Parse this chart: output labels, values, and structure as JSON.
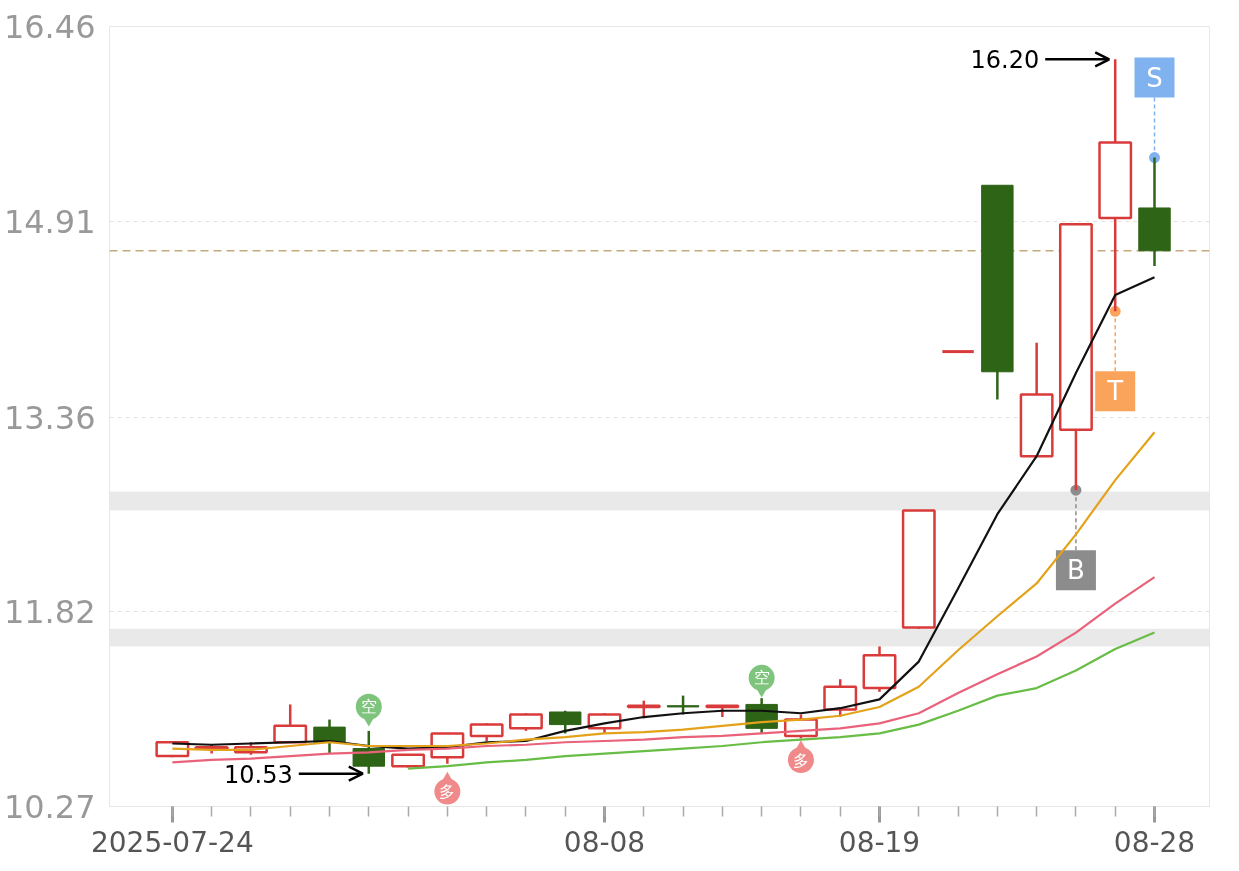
{
  "chart_data": {
    "type": "candlestick",
    "categories": [
      "2025-07-24",
      null,
      null,
      null,
      null,
      null,
      null,
      null,
      null,
      null,
      null,
      "08-08",
      null,
      null,
      null,
      null,
      null,
      null,
      "08-19",
      null,
      null,
      null,
      null,
      null,
      null,
      "08-28"
    ],
    "ohlc": [
      [
        10.67,
        10.79,
        10.66,
        10.78
      ],
      [
        10.73,
        10.76,
        10.69,
        10.74
      ],
      [
        10.7,
        10.78,
        10.68,
        10.74
      ],
      [
        10.78,
        11.08,
        10.78,
        10.91
      ],
      [
        10.9,
        10.96,
        10.69,
        10.78
      ],
      [
        10.73,
        10.87,
        10.53,
        10.59
      ],
      [
        10.59,
        10.68,
        10.58,
        10.68
      ],
      [
        10.66,
        10.85,
        10.61,
        10.85
      ],
      [
        10.83,
        10.93,
        10.79,
        10.92
      ],
      [
        10.89,
        11.01,
        10.87,
        11.0
      ],
      [
        11.02,
        11.03,
        10.85,
        10.92
      ],
      [
        10.89,
        11.01,
        10.85,
        11.0
      ],
      [
        11.06,
        11.11,
        10.97,
        11.07
      ],
      [
        11.07,
        11.15,
        11.0,
        11.06
      ],
      [
        11.06,
        11.07,
        10.98,
        11.07
      ],
      [
        11.08,
        11.13,
        10.85,
        10.89
      ],
      [
        10.83,
        11.0,
        10.81,
        10.96
      ],
      [
        11.04,
        11.28,
        10.98,
        11.22
      ],
      [
        11.21,
        11.54,
        11.18,
        11.47
      ],
      [
        11.69,
        12.62,
        11.68,
        12.62
      ],
      [
        13.88,
        13.88,
        13.88,
        13.88
      ],
      [
        15.2,
        15.2,
        13.5,
        13.72
      ],
      [
        13.05,
        13.95,
        13.05,
        13.54
      ],
      [
        13.26,
        14.89,
        12.78,
        14.89
      ],
      [
        14.94,
        16.2,
        14.2,
        15.54
      ],
      [
        15.02,
        15.42,
        14.56,
        14.68
      ]
    ],
    "colors": [
      "#d93a3a",
      "#d93a3a",
      "#d93a3a",
      "#d93a3a",
      "#2e6416",
      "#2e6416",
      "#d93a3a",
      "#d93a3a",
      "#d93a3a",
      "#d93a3a",
      "#2e6416",
      "#d93a3a",
      "#d93a3a",
      "#2e6416",
      "#d93a3a",
      "#2e6416",
      "#d93a3a",
      "#d93a3a",
      "#d93a3a",
      "#d93a3a",
      "#d93a3a",
      "#2e6416",
      "#d93a3a",
      "#d93a3a",
      "#d93a3a",
      "#2e6416"
    ],
    "series": [
      {
        "type": "line",
        "color": "#111111",
        "values": [
          10.77,
          10.76,
          10.77,
          10.78,
          10.79,
          10.75,
          10.73,
          10.74,
          10.78,
          10.79,
          10.87,
          10.93,
          10.98,
          11.01,
          11.03,
          11.03,
          11.01,
          11.05,
          11.12,
          11.42,
          12.0,
          12.59,
          13.05,
          13.71,
          14.33,
          14.47
        ]
      },
      {
        "type": "line",
        "color": "#e3a21a",
        "values": [
          10.73,
          10.72,
          10.72,
          10.75,
          10.78,
          10.75,
          10.75,
          10.75,
          10.77,
          10.8,
          10.82,
          10.85,
          10.86,
          10.88,
          10.91,
          10.94,
          10.96,
          10.99,
          11.06,
          11.22,
          11.51,
          11.78,
          12.04,
          12.43,
          12.86,
          13.24
        ]
      },
      {
        "type": "line",
        "color": "#e9627a",
        "values": [
          10.62,
          10.64,
          10.65,
          10.67,
          10.69,
          10.7,
          10.72,
          10.73,
          10.75,
          10.76,
          10.78,
          10.79,
          10.8,
          10.82,
          10.83,
          10.85,
          10.87,
          10.89,
          10.93,
          11.01,
          11.17,
          11.32,
          11.46,
          11.65,
          11.88,
          12.09
        ]
      },
      {
        "type": "line",
        "color": "#67bd45",
        "values": [
          null,
          null,
          null,
          null,
          null,
          null,
          10.57,
          10.59,
          10.62,
          10.64,
          10.67,
          10.69,
          10.71,
          10.73,
          10.75,
          10.78,
          10.8,
          10.82,
          10.85,
          10.92,
          11.03,
          11.15,
          11.21,
          11.35,
          11.52,
          11.65
        ]
      },
      {
        "type": "scatter",
        "marker": "circle",
        "color": "#7fb2ef",
        "values": [
          null,
          null,
          null,
          null,
          null,
          null,
          null,
          null,
          null,
          null,
          null,
          null,
          null,
          null,
          null,
          null,
          null,
          null,
          null,
          null,
          null,
          null,
          null,
          null,
          null,
          15.42
        ],
        "value_labels": [
          null,
          null,
          null,
          null,
          null,
          null,
          null,
          null,
          null,
          null,
          null,
          null,
          null,
          null,
          null,
          null,
          null,
          null,
          null,
          null,
          null,
          null,
          null,
          null,
          null,
          "S"
        ]
      },
      {
        "type": "scatter",
        "marker": "circle",
        "color": "#f9a35b",
        "values": [
          null,
          null,
          null,
          null,
          null,
          null,
          null,
          null,
          null,
          null,
          null,
          null,
          null,
          null,
          null,
          null,
          null,
          null,
          null,
          null,
          null,
          null,
          null,
          null,
          14.2,
          null
        ],
        "value_labels": [
          null,
          null,
          null,
          null,
          null,
          null,
          null,
          null,
          null,
          null,
          null,
          null,
          null,
          null,
          null,
          null,
          null,
          null,
          null,
          null,
          null,
          null,
          null,
          null,
          "T",
          null
        ]
      },
      {
        "type": "scatter",
        "marker": "circle",
        "color": "#8c8c8c",
        "values": [
          null,
          null,
          null,
          null,
          null,
          null,
          null,
          null,
          null,
          null,
          null,
          null,
          null,
          null,
          null,
          null,
          null,
          null,
          null,
          null,
          null,
          null,
          null,
          12.78,
          null,
          null
        ],
        "value_labels": [
          null,
          null,
          null,
          null,
          null,
          null,
          null,
          null,
          null,
          null,
          null,
          null,
          null,
          null,
          null,
          null,
          null,
          null,
          null,
          null,
          null,
          null,
          null,
          "B",
          null,
          null
        ]
      },
      {
        "type": "scatter",
        "marker": "triangle",
        "color": "#7fc47c",
        "values": [
          null,
          null,
          null,
          null,
          null,
          10.95,
          null,
          null,
          null,
          null,
          null,
          null,
          null,
          null,
          null,
          11.18,
          null,
          null,
          null,
          null,
          null,
          null,
          null,
          null,
          null,
          null
        ],
        "value_labels": [
          null,
          null,
          null,
          null,
          null,
          "空",
          null,
          null,
          null,
          null,
          null,
          null,
          null,
          null,
          null,
          "空",
          null,
          null,
          null,
          null,
          null,
          null,
          null,
          null,
          null,
          null
        ]
      },
      {
        "type": "scatter",
        "marker": "triangle",
        "color": "#f08a8a",
        "values": [
          null,
          null,
          null,
          null,
          null,
          null,
          null,
          10.5,
          null,
          null,
          null,
          null,
          null,
          null,
          null,
          null,
          10.75,
          null,
          null,
          null,
          null,
          null,
          null,
          null,
          null,
          null
        ],
        "value_labels": [
          null,
          null,
          null,
          null,
          null,
          null,
          null,
          "多",
          null,
          null,
          null,
          null,
          null,
          null,
          null,
          null,
          "多",
          null,
          null,
          null,
          null,
          null,
          null,
          null,
          null,
          null
        ]
      }
    ],
    "ylim": [
      10.27,
      16.46
    ],
    "yticks": [
      10.27,
      11.82,
      13.36,
      14.91,
      16.46
    ],
    "grid": "y",
    "ref_lines": [
      {
        "axis": "y",
        "value": 14.68,
        "color": "#c4a97c",
        "line_style": "dashed"
      }
    ],
    "bands": [
      {
        "axis": "y",
        "from": 12.62,
        "to": 12.77,
        "color": "#e9e9e9"
      },
      {
        "axis": "y",
        "from": 11.54,
        "to": 11.68,
        "color": "#e9e9e9"
      }
    ],
    "annotations": [
      "16.20",
      "10.53"
    ]
  }
}
